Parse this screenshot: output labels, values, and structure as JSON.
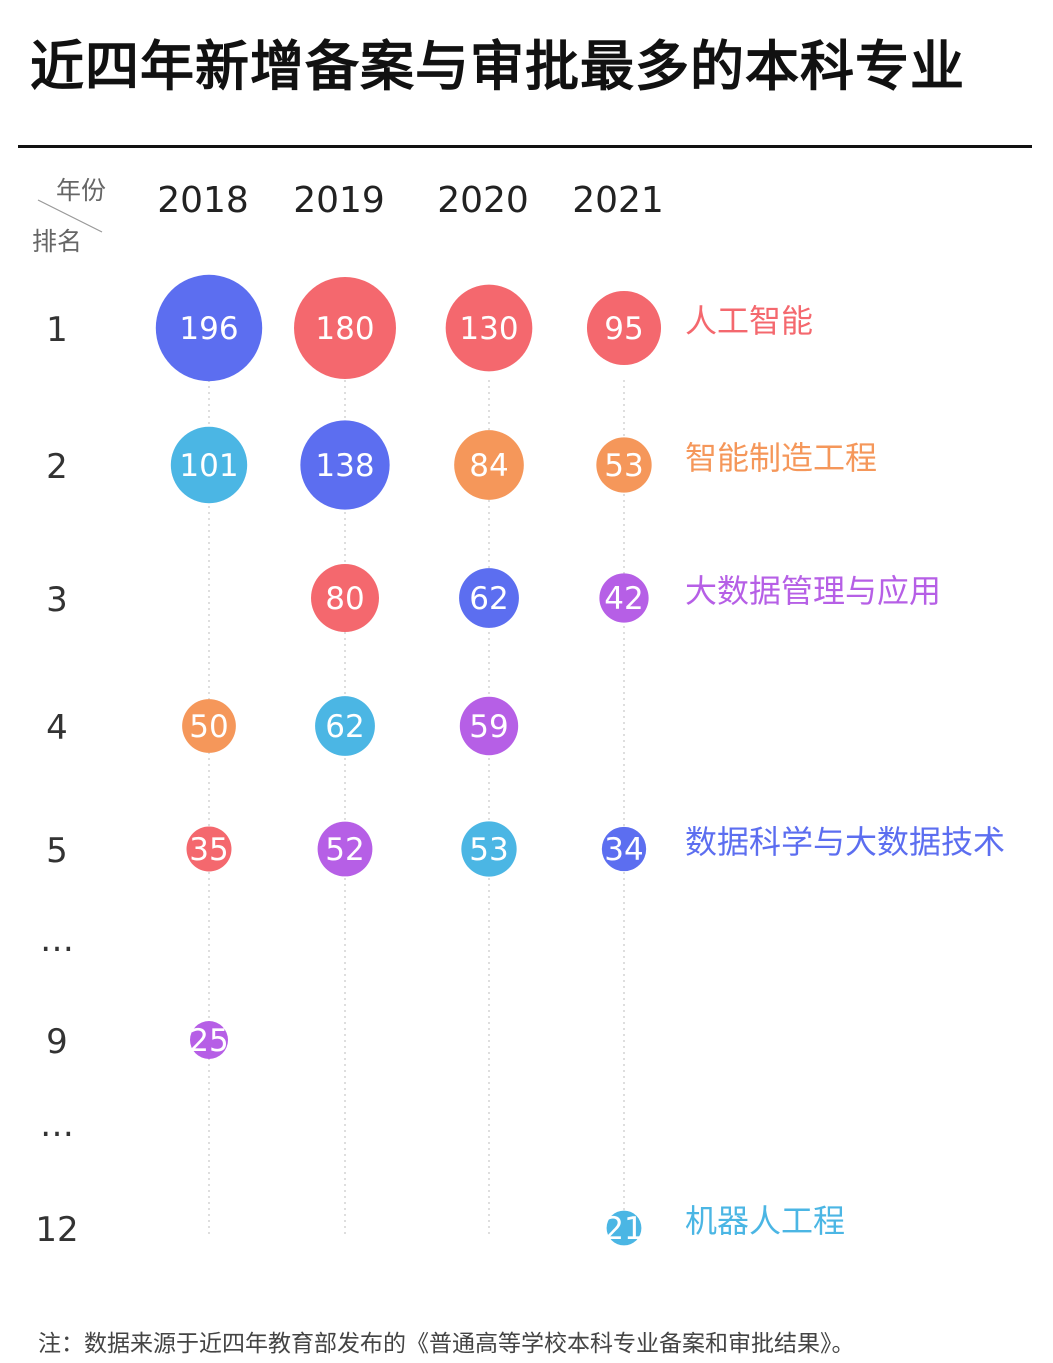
{
  "title": "近四年新增备案与审批最多的本科专业",
  "corner": {
    "top": "年份",
    "bottom": "排名"
  },
  "footnote": "注：数据来源于近四年教育部发布的《普通高等学校本科专业备案和审批结果》。",
  "colors": {
    "人工智能": "#f4686e",
    "智能制造工程": "#f5975a",
    "大数据管理与应用": "#b65fe6",
    "数据科学与大数据技术": "#5c6ef0",
    "机器人工程": "#4bb6e4"
  },
  "chart_data": {
    "type": "bubble",
    "x_categories": [
      "2018",
      "2019",
      "2020",
      "2021"
    ],
    "y_categories": [
      "1",
      "2",
      "3",
      "4",
      "5",
      "…",
      "9",
      "…",
      "12"
    ],
    "series": [
      {
        "name": "人工智能",
        "points": [
          {
            "year": "2018",
            "rank": "3",
            "value": null
          },
          {
            "year": "2019",
            "rank": "1",
            "value": 180
          },
          {
            "year": "2020",
            "rank": "1",
            "value": 130
          },
          {
            "year": "2021",
            "rank": "1",
            "value": 95
          }
        ]
      },
      {
        "name": "智能制造工程",
        "points": [
          {
            "year": "2018",
            "rank": "4",
            "value": 50
          },
          {
            "year": "2020",
            "rank": "2",
            "value": 84
          },
          {
            "year": "2021",
            "rank": "2",
            "value": 53
          }
        ]
      },
      {
        "name": "大数据管理与应用",
        "points": [
          {
            "year": "2018",
            "rank": "9",
            "value": 25
          },
          {
            "year": "2019",
            "rank": "5",
            "value": 52
          },
          {
            "year": "2020",
            "rank": "4",
            "value": 59
          },
          {
            "year": "2021",
            "rank": "3",
            "value": 42
          }
        ]
      },
      {
        "name": "数据科学与大数据技术",
        "points": [
          {
            "year": "2018",
            "rank": "1",
            "value": 196
          },
          {
            "year": "2019",
            "rank": "2",
            "value": 138
          },
          {
            "year": "2020",
            "rank": "3",
            "value": 62
          },
          {
            "year": "2021",
            "rank": "5",
            "value": 34
          }
        ]
      },
      {
        "name": "机器人工程",
        "points": [
          {
            "year": "2018",
            "rank": "2",
            "value": 101
          },
          {
            "year": "2019",
            "rank": "4",
            "value": 62
          },
          {
            "year": "2020",
            "rank": "5",
            "value": 53
          },
          {
            "year": "2021",
            "rank": "12",
            "value": 21
          }
        ]
      },
      {
        "name": "",
        "points": [
          {
            "year": "2018",
            "rank": "5",
            "value": 35
          },
          {
            "year": "2019",
            "rank": "3",
            "value": 80
          }
        ]
      }
    ],
    "legend": [
      "人工智能",
      "智能制造工程",
      "大数据管理与应用",
      "数据科学与大数据技术",
      "机器人工程"
    ],
    "legend_placement": "right, aligned with 2021 ranks"
  }
}
